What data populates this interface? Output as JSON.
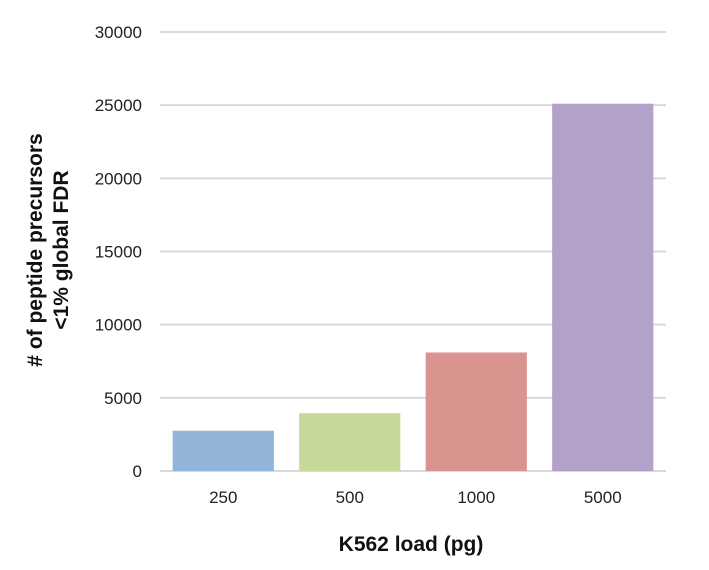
{
  "chart_data": {
    "type": "bar",
    "title": "",
    "categories": [
      "250",
      "500",
      "1000",
      "5000"
    ],
    "values": [
      2750,
      3950,
      8100,
      25100
    ],
    "bar_colors": [
      "#93b4d9",
      "#c6d99b",
      "#d99490",
      "#b3a1c9"
    ],
    "xlabel": "K562 load (pg)",
    "ylabel_lines": [
      "# of peptide precursors",
      "<1% global  FDR"
    ],
    "ylim": [
      0,
      30000
    ],
    "yticks": [
      0,
      5000,
      10000,
      15000,
      20000,
      25000,
      30000
    ],
    "grid": true,
    "grid_color": "#d9d9d9",
    "legend": "none"
  }
}
